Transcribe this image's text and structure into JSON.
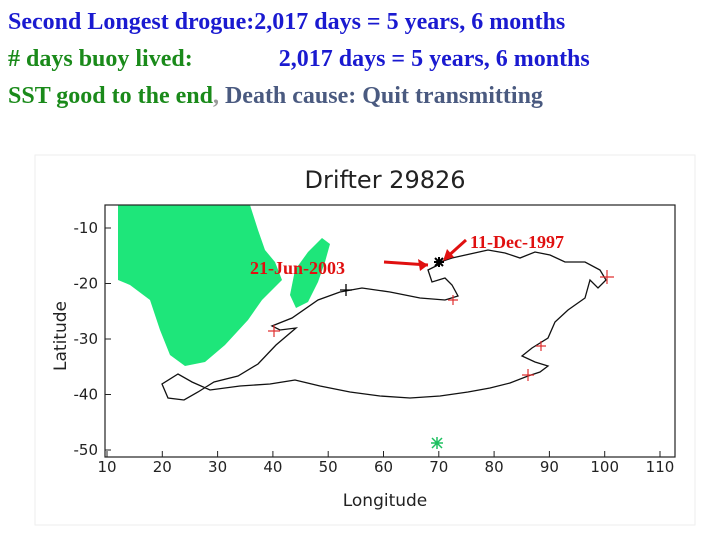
{
  "header": {
    "lines": [
      [
        {
          "text": "Second Longest drogue:2,017 days = 5 years, 6 months",
          "tone": "blue"
        }
      ],
      [
        {
          "text": "# days buoy lived:",
          "tone": "green"
        },
        {
          "text": "2,017 days = 5 years, 6 months",
          "tone": "blue",
          "gap": true
        }
      ],
      [
        {
          "text": "SST good to the end",
          "tone": "green"
        },
        {
          "text": ",",
          "tone": "grey"
        },
        {
          "text": " Death cause: Quit transmitting",
          "tone": "slate"
        }
      ]
    ]
  },
  "plot": {
    "title": "Drifter 29826",
    "x_label": "Longitude",
    "y_label": "Latitude",
    "x_ticks": [
      10,
      20,
      30,
      40,
      50,
      60,
      70,
      80,
      90,
      100,
      110
    ],
    "y_ticks": [
      -10,
      -20,
      -30,
      -40,
      -50
    ],
    "annotations": [
      {
        "text": "21-Jun-2003"
      },
      {
        "text": "11-Dec-1997"
      }
    ]
  }
}
